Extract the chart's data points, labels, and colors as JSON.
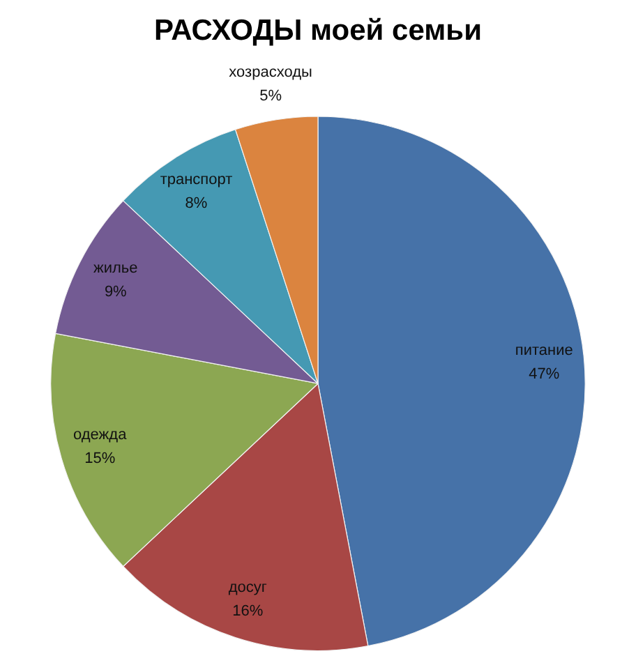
{
  "chart_data": {
    "type": "pie",
    "title": "РАСХОДЫ моей семьи",
    "categories": [
      "питание",
      "досуг",
      "одежда",
      "жилье",
      "транспорт",
      "хозрасходы"
    ],
    "values": [
      47,
      16,
      15,
      9,
      8,
      5
    ],
    "colors": [
      "#4672a8",
      "#a84745",
      "#8ca752",
      "#735b93",
      "#4599b3",
      "#db843f"
    ],
    "value_labels": [
      "47%",
      "16%",
      "15%",
      "9%",
      "8%",
      "5%"
    ]
  }
}
